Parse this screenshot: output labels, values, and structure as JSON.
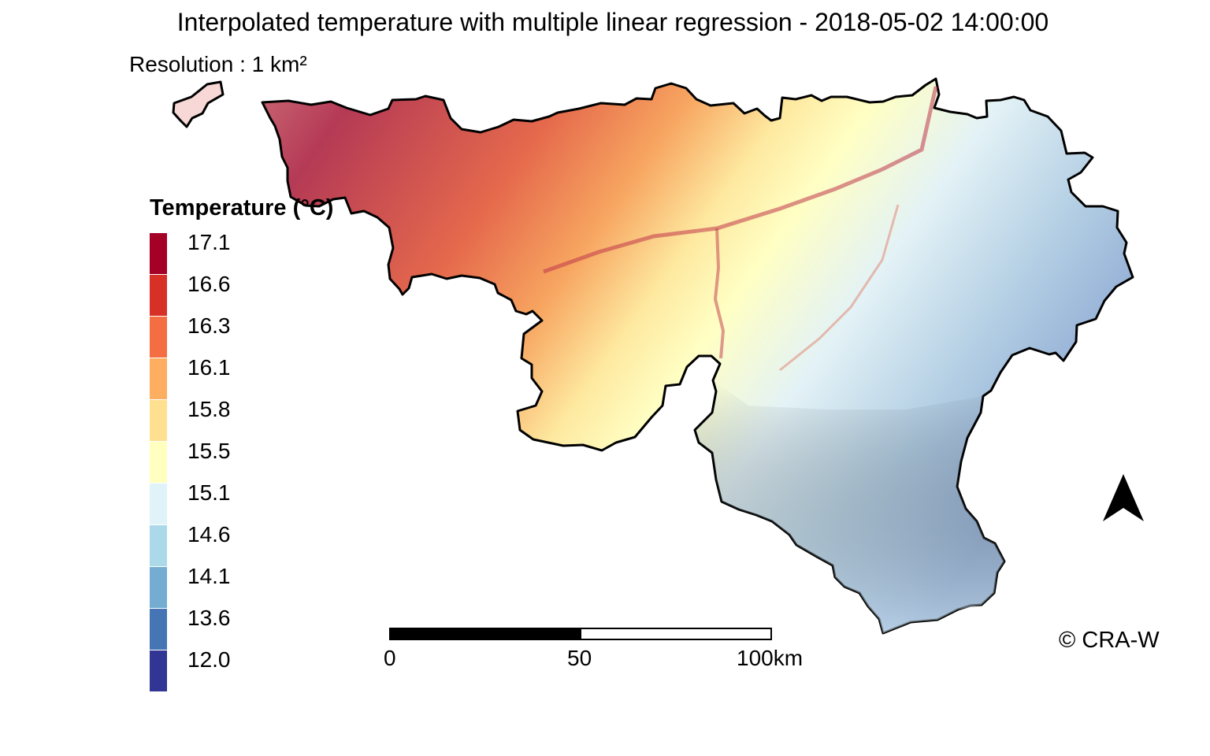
{
  "title": "Interpolated temperature with multiple linear regression - 2018-05-02 14:00:00",
  "subtitle": "Resolution : 1 km²",
  "legend": {
    "title": "Temperature (°C)",
    "items": [
      {
        "label": "17.1",
        "color": "#a50026"
      },
      {
        "label": "16.6",
        "color": "#d73027"
      },
      {
        "label": "16.3",
        "color": "#f46d43"
      },
      {
        "label": "16.1",
        "color": "#fdae61"
      },
      {
        "label": "15.8",
        "color": "#fee090"
      },
      {
        "label": "15.5",
        "color": "#ffffbf"
      },
      {
        "label": "15.1",
        "color": "#e0f3f8"
      },
      {
        "label": "14.6",
        "color": "#abd9e9"
      },
      {
        "label": "14.1",
        "color": "#74add1"
      },
      {
        "label": "13.6",
        "color": "#4575b4"
      },
      {
        "label": "12.0",
        "color": "#313695"
      }
    ]
  },
  "scale_bar": {
    "labels": [
      "0",
      "50",
      "100km"
    ]
  },
  "north_arrow": {
    "icon": "north-arrow-icon"
  },
  "credit": "© CRA-W"
}
